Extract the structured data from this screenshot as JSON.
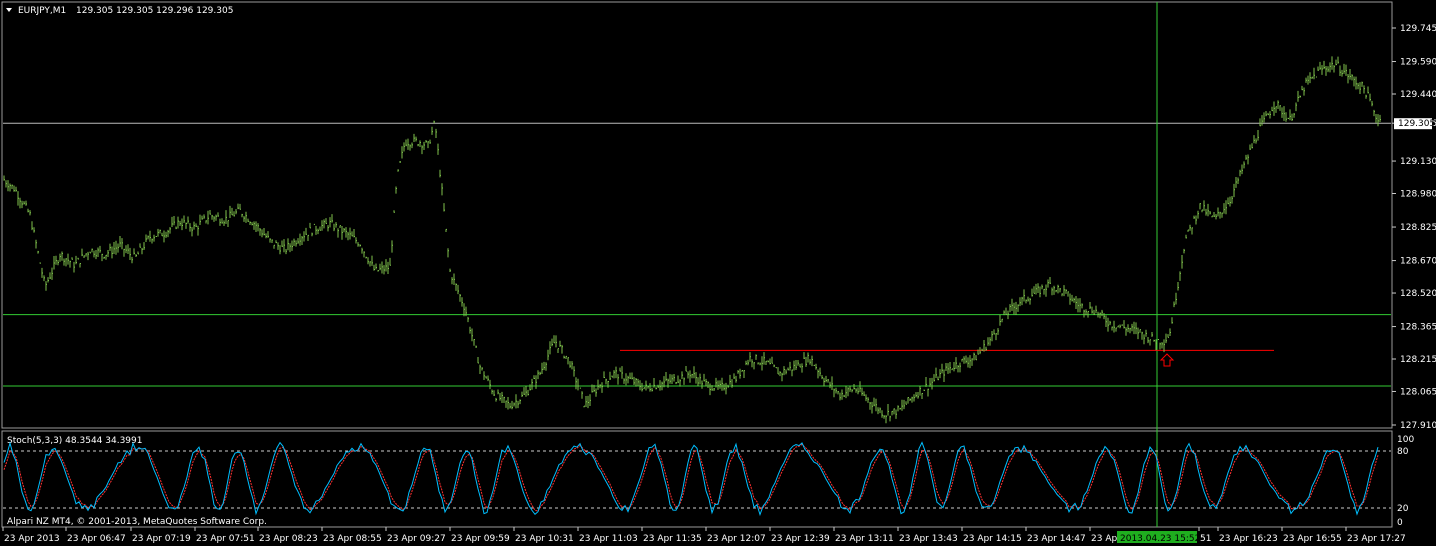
{
  "header": {
    "symbol": "EURJPY,M1",
    "quotes": "129.305 129.305 129.296 129.305"
  },
  "price_axis": {
    "ticks": [
      "129.745",
      "129.590",
      "129.440",
      "129.305",
      "129.130",
      "128.980",
      "128.825",
      "128.670",
      "128.520",
      "128.365",
      "128.215",
      "128.065",
      "127.910"
    ],
    "current_price_label": "129.305"
  },
  "indicator": {
    "title": "Stoch(5,3,3) 48.3544 34.3991",
    "levels": [
      "100",
      "80",
      "20",
      "0"
    ],
    "copyright": "Alpari NZ MT4, © 2001-2013, MetaQuotes Software Corp."
  },
  "time_axis": {
    "labels": [
      "23 Apr 2013",
      "23 Apr 06:47",
      "23 Apr 07:19",
      "23 Apr 07:51",
      "23 Apr 08:23",
      "23 Apr 08:55",
      "23 Apr 09:27",
      "23 Apr 09:59",
      "23 Apr 10:31",
      "23 Apr 11:03",
      "23 Apr 11:35",
      "23 Apr 12:07",
      "23 Apr 12:39",
      "23 Apr 13:11",
      "23 Apr 13:43",
      "23 Apr 14:15",
      "23 Apr 14:47",
      "23 Apr 15:",
      "51",
      "23 Apr 16:23",
      "23 Apr 16:55",
      "23 Apr 17:27"
    ],
    "crosshair_time": "2013.04.23 15:52"
  },
  "colors": {
    "background": "#000000",
    "price_series": "#7FC24C",
    "grid_line": "#33CC33",
    "resistance_line": "#FF0000",
    "arrow": "#FF0000",
    "crosshair": "#33CC33",
    "stoch_main": "#00BFFF",
    "stoch_signal": "#FF3030",
    "time_highlight": "#1FAF1F"
  },
  "icons": {
    "menu": "triangle-down-icon",
    "marker": "up-arrow-icon"
  },
  "chart_data": {
    "type": "bar",
    "title": "EURJPY,M1",
    "ylim": [
      127.91,
      129.745
    ],
    "series": [
      {
        "name": "EURJPY,M1",
        "x_index": [
          0,
          15,
          30,
          45,
          60,
          75,
          90,
          105,
          120,
          135,
          150,
          165,
          180,
          195,
          210,
          225,
          240,
          255,
          270,
          285,
          300,
          315,
          330,
          345,
          360,
          375,
          390,
          397,
          405,
          420,
          428,
          435,
          450,
          465,
          480,
          495,
          510,
          525,
          540,
          555,
          570,
          585,
          600,
          615,
          630,
          645,
          660,
          675,
          690,
          705,
          720,
          735,
          750,
          765,
          780,
          795,
          810,
          825,
          840,
          855,
          870,
          885,
          900,
          915,
          930,
          945,
          960,
          975,
          990,
          1005,
          1020,
          1035,
          1050,
          1065,
          1080,
          1095,
          1110,
          1125,
          1140,
          1155,
          1165,
          1170,
          1185,
          1200,
          1215,
          1230,
          1245,
          1260,
          1275,
          1290,
          1305,
          1320,
          1335,
          1350,
          1365,
          1378
        ],
        "values": [
          129.06,
          129.0,
          128.88,
          128.55,
          128.7,
          128.65,
          128.72,
          128.7,
          128.74,
          128.68,
          128.78,
          128.8,
          128.85,
          128.82,
          128.88,
          128.86,
          128.9,
          128.84,
          128.76,
          128.72,
          128.78,
          128.82,
          128.84,
          128.8,
          128.75,
          128.62,
          128.64,
          129.05,
          129.22,
          129.22,
          129.2,
          129.31,
          128.62,
          128.45,
          128.18,
          128.05,
          128.0,
          128.05,
          128.15,
          128.3,
          128.2,
          128.0,
          128.1,
          128.15,
          128.12,
          128.08,
          128.1,
          128.12,
          128.15,
          128.1,
          128.08,
          128.12,
          128.22,
          128.2,
          128.15,
          128.18,
          128.22,
          128.12,
          128.05,
          128.08,
          128.02,
          127.96,
          127.98,
          128.05,
          128.1,
          128.16,
          128.2,
          128.22,
          128.3,
          128.42,
          128.48,
          128.52,
          128.56,
          128.52,
          128.46,
          128.44,
          128.38,
          128.36,
          128.34,
          128.3,
          128.3,
          128.34,
          128.76,
          128.92,
          128.86,
          128.95,
          129.12,
          129.28,
          129.4,
          129.32,
          129.48,
          129.55,
          129.58,
          129.52,
          129.46,
          129.32
        ]
      }
    ],
    "stochastic": {
      "name": "Stoch(5,3,3)",
      "main": 48.3544,
      "signal": 34.3991,
      "levels": [
        20,
        80
      ],
      "ylim": [
        0,
        100
      ]
    },
    "horizontal_lines": [
      129.305,
      128.42,
      128.09
    ],
    "resistance_line": 128.255
  }
}
